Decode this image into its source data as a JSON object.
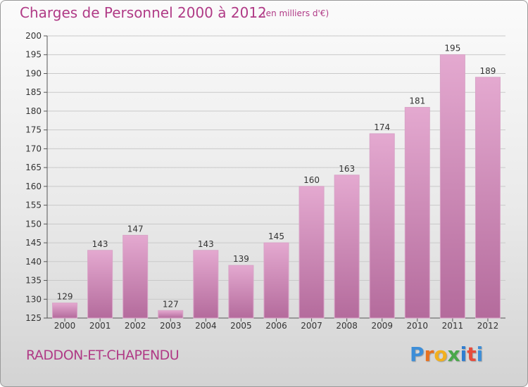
{
  "header": {
    "title": "Charges de Personnel 2000 à 2012",
    "subtitle": "(en milliers d'€)"
  },
  "footer": {
    "commune": "RADDON-ET-CHAPENDU",
    "logo": "Proxiti"
  },
  "colors": {
    "title": "#b03a86",
    "bar_top": "#e4a9d0",
    "bar_bottom": "#b46b9c",
    "logo_letters": [
      "#3d8ed8",
      "#e8711f",
      "#f2b01e",
      "#49a84a",
      "#2f7dd1",
      "#e74c3c",
      "#3d8ed8"
    ]
  },
  "chart_data": {
    "type": "bar",
    "categories": [
      "2000",
      "2001",
      "2002",
      "2003",
      "2004",
      "2005",
      "2006",
      "2007",
      "2008",
      "2009",
      "2010",
      "2011",
      "2012"
    ],
    "values": [
      129,
      143,
      147,
      127,
      143,
      139,
      145,
      160,
      163,
      174,
      181,
      195,
      189
    ],
    "value_labels": [
      "129",
      "143",
      "147",
      "127",
      "143",
      "139",
      "145",
      "160",
      "163",
      "174",
      "181",
      "195",
      "189"
    ],
    "ylim": [
      125,
      200
    ],
    "yticks": [
      125,
      130,
      135,
      140,
      145,
      150,
      155,
      160,
      165,
      170,
      175,
      180,
      185,
      190,
      195,
      200
    ],
    "grid": true
  }
}
